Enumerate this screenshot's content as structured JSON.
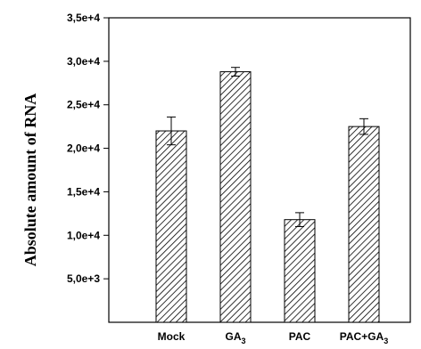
{
  "chart_data": {
    "type": "bar",
    "ylabel": "Absolute amount of RNA",
    "xlabel": "",
    "title": "",
    "categories": [
      {
        "label": "Mock",
        "sub": ""
      },
      {
        "label": "GA",
        "sub": "3"
      },
      {
        "label": "PAC",
        "sub": ""
      },
      {
        "label": "PAC+GA",
        "sub": "3"
      }
    ],
    "values": [
      22000,
      28800,
      11800,
      22500
    ],
    "errors": [
      1600,
      500,
      800,
      900
    ],
    "ylim": [
      0,
      35000
    ],
    "yticks": [
      5000,
      10000,
      15000,
      20000,
      25000,
      30000,
      35000
    ],
    "ytick_labels": [
      "5,0e+3",
      "1,0e+4",
      "1,5e+4",
      "2,0e+4",
      "2,5e+4",
      "3,0e+4",
      "3,5e+4"
    ],
    "bar_pattern": "diagonal-hatch",
    "bar_color": "#ffffff",
    "grid": false,
    "legend": "none"
  }
}
